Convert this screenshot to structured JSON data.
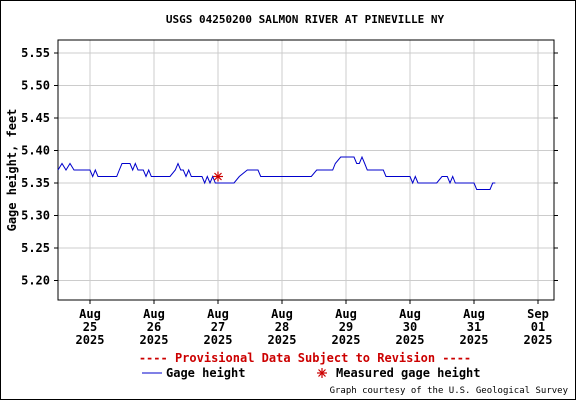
{
  "chart_data": {
    "type": "line",
    "title": "USGS 04250200 SALMON RIVER AT PINEVILLE NY",
    "ylabel": "Gage height, feet",
    "xlabel": "",
    "ylim": [
      5.17,
      5.57
    ],
    "yticks": [
      "5.20",
      "5.25",
      "5.30",
      "5.35",
      "5.40",
      "5.45",
      "5.50",
      "5.55"
    ],
    "xlim": [
      "2025-08-24T12:00",
      "2025-09-01T06:00"
    ],
    "xticks": [
      {
        "at": "2025-08-25",
        "month": "Aug",
        "day": "25",
        "year": "2025"
      },
      {
        "at": "2025-08-26",
        "month": "Aug",
        "day": "26",
        "year": "2025"
      },
      {
        "at": "2025-08-27",
        "month": "Aug",
        "day": "27",
        "year": "2025"
      },
      {
        "at": "2025-08-28",
        "month": "Aug",
        "day": "28",
        "year": "2025"
      },
      {
        "at": "2025-08-29",
        "month": "Aug",
        "day": "29",
        "year": "2025"
      },
      {
        "at": "2025-08-30",
        "month": "Aug",
        "day": "30",
        "year": "2025"
      },
      {
        "at": "2025-08-31",
        "month": "Aug",
        "day": "31",
        "year": "2025"
      },
      {
        "at": "2025-09-01",
        "month": "Sep",
        "day": "01",
        "year": "2025"
      }
    ],
    "grid": true,
    "series": [
      {
        "name": "Gage height",
        "color": "#0000cc",
        "points": [
          [
            "2025-08-24T12:00",
            5.37
          ],
          [
            "2025-08-24T13:30",
            5.38
          ],
          [
            "2025-08-24T15:00",
            5.37
          ],
          [
            "2025-08-24T16:30",
            5.38
          ],
          [
            "2025-08-24T18:00",
            5.37
          ],
          [
            "2025-08-25T00:00",
            5.37
          ],
          [
            "2025-08-25T01:00",
            5.36
          ],
          [
            "2025-08-25T02:00",
            5.37
          ],
          [
            "2025-08-25T03:00",
            5.36
          ],
          [
            "2025-08-25T10:00",
            5.36
          ],
          [
            "2025-08-25T11:00",
            5.37
          ],
          [
            "2025-08-25T12:00",
            5.38
          ],
          [
            "2025-08-25T15:00",
            5.38
          ],
          [
            "2025-08-25T16:00",
            5.37
          ],
          [
            "2025-08-25T17:00",
            5.38
          ],
          [
            "2025-08-25T18:00",
            5.37
          ],
          [
            "2025-08-25T20:00",
            5.37
          ],
          [
            "2025-08-25T21:00",
            5.36
          ],
          [
            "2025-08-25T22:00",
            5.37
          ],
          [
            "2025-08-25T23:00",
            5.36
          ],
          [
            "2025-08-26T06:00",
            5.36
          ],
          [
            "2025-08-26T08:00",
            5.37
          ],
          [
            "2025-08-26T09:00",
            5.38
          ],
          [
            "2025-08-26T10:00",
            5.37
          ],
          [
            "2025-08-26T11:00",
            5.37
          ],
          [
            "2025-08-26T12:00",
            5.36
          ],
          [
            "2025-08-26T13:00",
            5.37
          ],
          [
            "2025-08-26T14:00",
            5.36
          ],
          [
            "2025-08-26T18:00",
            5.36
          ],
          [
            "2025-08-26T19:00",
            5.35
          ],
          [
            "2025-08-26T20:00",
            5.36
          ],
          [
            "2025-08-26T21:00",
            5.35
          ],
          [
            "2025-08-26T22:00",
            5.36
          ],
          [
            "2025-08-26T23:00",
            5.35
          ],
          [
            "2025-08-27T06:00",
            5.35
          ],
          [
            "2025-08-27T08:00",
            5.36
          ],
          [
            "2025-08-27T11:00",
            5.37
          ],
          [
            "2025-08-27T15:00",
            5.37
          ],
          [
            "2025-08-27T16:00",
            5.36
          ],
          [
            "2025-08-28T11:00",
            5.36
          ],
          [
            "2025-08-28T13:00",
            5.37
          ],
          [
            "2025-08-28T19:00",
            5.37
          ],
          [
            "2025-08-28T20:00",
            5.38
          ],
          [
            "2025-08-28T22:00",
            5.39
          ],
          [
            "2025-08-29T03:00",
            5.39
          ],
          [
            "2025-08-29T04:00",
            5.38
          ],
          [
            "2025-08-29T05:00",
            5.38
          ],
          [
            "2025-08-29T06:00",
            5.39
          ],
          [
            "2025-08-29T07:00",
            5.38
          ],
          [
            "2025-08-29T08:00",
            5.37
          ],
          [
            "2025-08-29T14:00",
            5.37
          ],
          [
            "2025-08-29T15:00",
            5.36
          ],
          [
            "2025-08-30T00:00",
            5.36
          ],
          [
            "2025-08-30T01:00",
            5.35
          ],
          [
            "2025-08-30T02:00",
            5.36
          ],
          [
            "2025-08-30T03:00",
            5.35
          ],
          [
            "2025-08-30T10:00",
            5.35
          ],
          [
            "2025-08-30T12:00",
            5.36
          ],
          [
            "2025-08-30T14:00",
            5.36
          ],
          [
            "2025-08-30T15:00",
            5.35
          ],
          [
            "2025-08-30T16:00",
            5.36
          ],
          [
            "2025-08-30T17:00",
            5.35
          ],
          [
            "2025-08-31T00:00",
            5.35
          ],
          [
            "2025-08-31T01:00",
            5.34
          ],
          [
            "2025-08-31T06:00",
            5.34
          ],
          [
            "2025-08-31T07:00",
            5.35
          ],
          [
            "2025-08-31T08:00",
            5.35
          ]
        ]
      }
    ],
    "measured": [
      {
        "name": "Measured gage height",
        "color": "#cc0000",
        "at": "2025-08-27T00:00",
        "value": 5.36
      }
    ],
    "notice": "---- Provisional Data Subject to Revision ----",
    "legend": {
      "gage": "Gage height",
      "measured": "Measured gage height"
    },
    "credit": "Graph courtesy of the U.S. Geological Survey"
  }
}
